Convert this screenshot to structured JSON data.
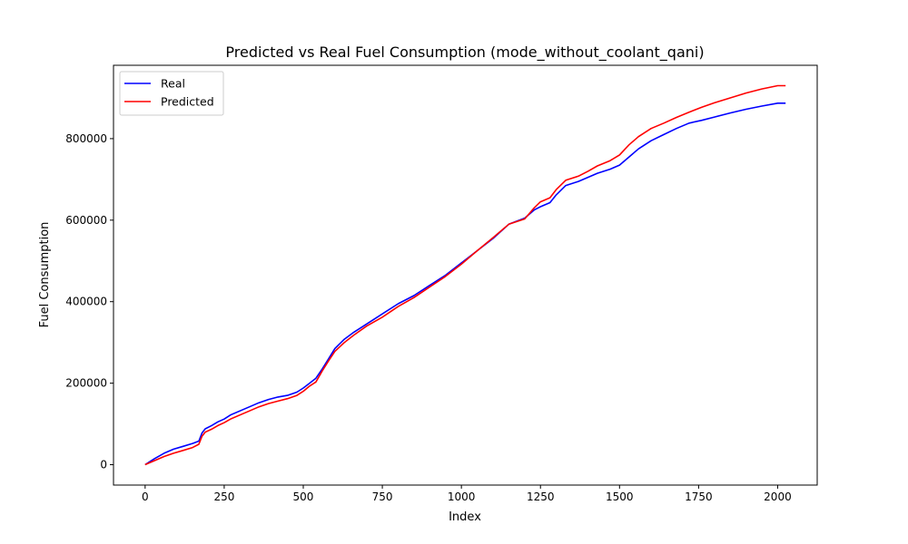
{
  "chart_data": {
    "type": "line",
    "title": "Predicted vs Real Fuel Consumption (mode_without_coolant_qani)",
    "xlabel": "Index",
    "ylabel": "Fuel Consumption",
    "xlim": [
      -100,
      2125
    ],
    "ylim": [
      -50000,
      980000
    ],
    "xticks": [
      0,
      250,
      500,
      750,
      1000,
      1250,
      1500,
      1750,
      2000
    ],
    "yticks": [
      0,
      200000,
      400000,
      600000,
      800000
    ],
    "grid": false,
    "legend": "top-left",
    "series": [
      {
        "name": "Real",
        "color": "#0000ff",
        "x": [
          0,
          30,
          60,
          90,
          120,
          150,
          170,
          180,
          190,
          210,
          230,
          250,
          270,
          300,
          330,
          360,
          390,
          420,
          450,
          480,
          500,
          520,
          540,
          560,
          580,
          600,
          630,
          660,
          700,
          750,
          800,
          850,
          900,
          950,
          1000,
          1050,
          1100,
          1150,
          1200,
          1230,
          1250,
          1280,
          1300,
          1330,
          1370,
          1400,
          1430,
          1470,
          1500,
          1530,
          1560,
          1600,
          1640,
          1680,
          1720,
          1760,
          1800,
          1850,
          1900,
          1950,
          2000,
          2025
        ],
        "y": [
          0,
          15000,
          28000,
          38000,
          45000,
          52000,
          58000,
          78000,
          88000,
          96000,
          105000,
          112000,
          122000,
          132000,
          142000,
          152000,
          160000,
          166000,
          170000,
          178000,
          188000,
          200000,
          212000,
          235000,
          260000,
          285000,
          308000,
          325000,
          345000,
          370000,
          395000,
          415000,
          440000,
          465000,
          495000,
          525000,
          555000,
          590000,
          605000,
          625000,
          633000,
          643000,
          662000,
          685000,
          695000,
          705000,
          715000,
          725000,
          735000,
          755000,
          775000,
          795000,
          810000,
          825000,
          838000,
          845000,
          853000,
          863000,
          872000,
          880000,
          887000,
          887000
        ]
      },
      {
        "name": "Predicted",
        "color": "#ff0000",
        "x": [
          0,
          30,
          60,
          90,
          120,
          150,
          170,
          180,
          190,
          210,
          230,
          250,
          270,
          300,
          330,
          360,
          390,
          420,
          450,
          480,
          500,
          520,
          540,
          560,
          580,
          600,
          630,
          660,
          700,
          750,
          800,
          850,
          900,
          950,
          1000,
          1050,
          1100,
          1150,
          1200,
          1230,
          1250,
          1280,
          1300,
          1330,
          1370,
          1400,
          1430,
          1470,
          1500,
          1530,
          1560,
          1600,
          1640,
          1680,
          1720,
          1760,
          1800,
          1850,
          1900,
          1950,
          2000,
          2025
        ],
        "y": [
          0,
          10000,
          20000,
          28000,
          35000,
          42000,
          50000,
          70000,
          80000,
          87000,
          96000,
          103000,
          112000,
          122000,
          132000,
          142000,
          150000,
          156000,
          162000,
          170000,
          180000,
          193000,
          203000,
          230000,
          255000,
          278000,
          300000,
          318000,
          340000,
          362000,
          388000,
          410000,
          436000,
          462000,
          492000,
          525000,
          557000,
          590000,
          603000,
          630000,
          645000,
          655000,
          675000,
          698000,
          708000,
          720000,
          733000,
          746000,
          760000,
          785000,
          805000,
          825000,
          838000,
          852000,
          865000,
          877000,
          888000,
          900000,
          912000,
          922000,
          930000,
          930000
        ]
      }
    ]
  }
}
